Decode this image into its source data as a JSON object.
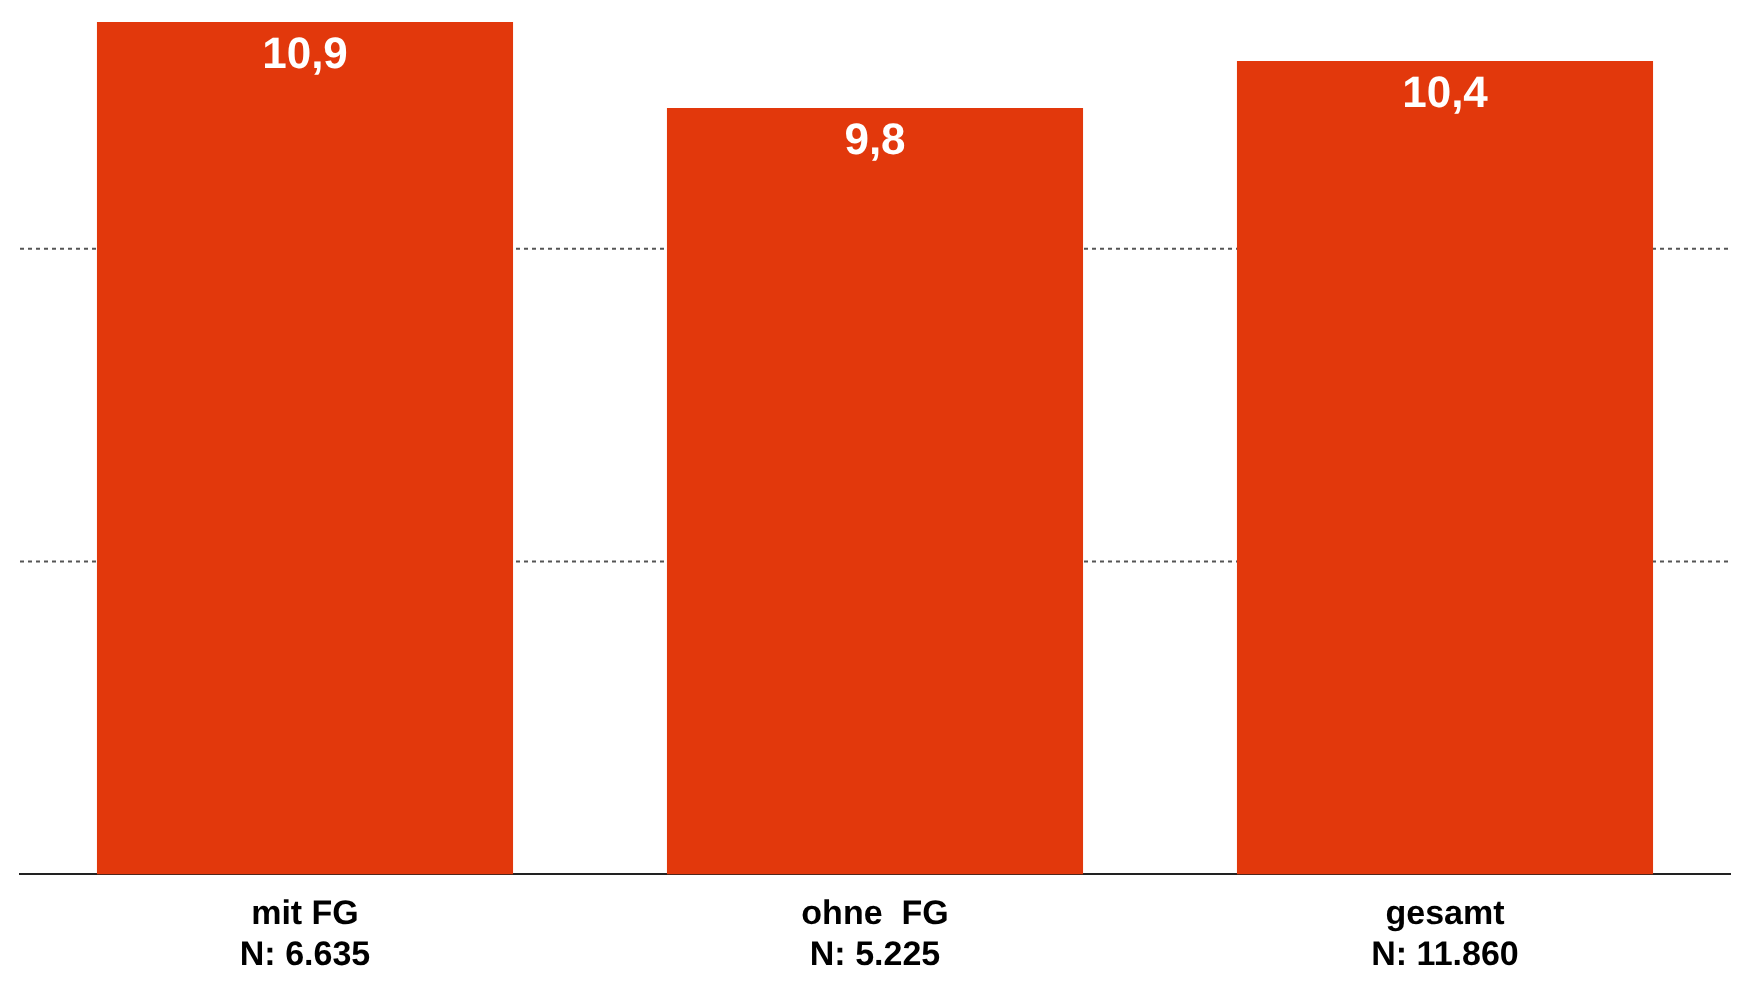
{
  "chart_data": {
    "type": "bar",
    "categories": [
      "mit FG\nN: 6.635",
      "ohne  FG\nN: 5.225",
      "gesamt\nN: 11.860"
    ],
    "values": [
      10.9,
      9.8,
      10.4
    ],
    "color": "#e2380c",
    "value_labels": [
      "10,9",
      "9,8",
      "10,4"
    ],
    "ref_lines": [
      {
        "axis": "y",
        "value": 4,
        "color": "#555555",
        "line_style": "dotted"
      },
      {
        "axis": "y",
        "value": 8,
        "color": "#555555",
        "line_style": "dotted"
      }
    ],
    "tick_labels": "x",
    "legend": false
  }
}
